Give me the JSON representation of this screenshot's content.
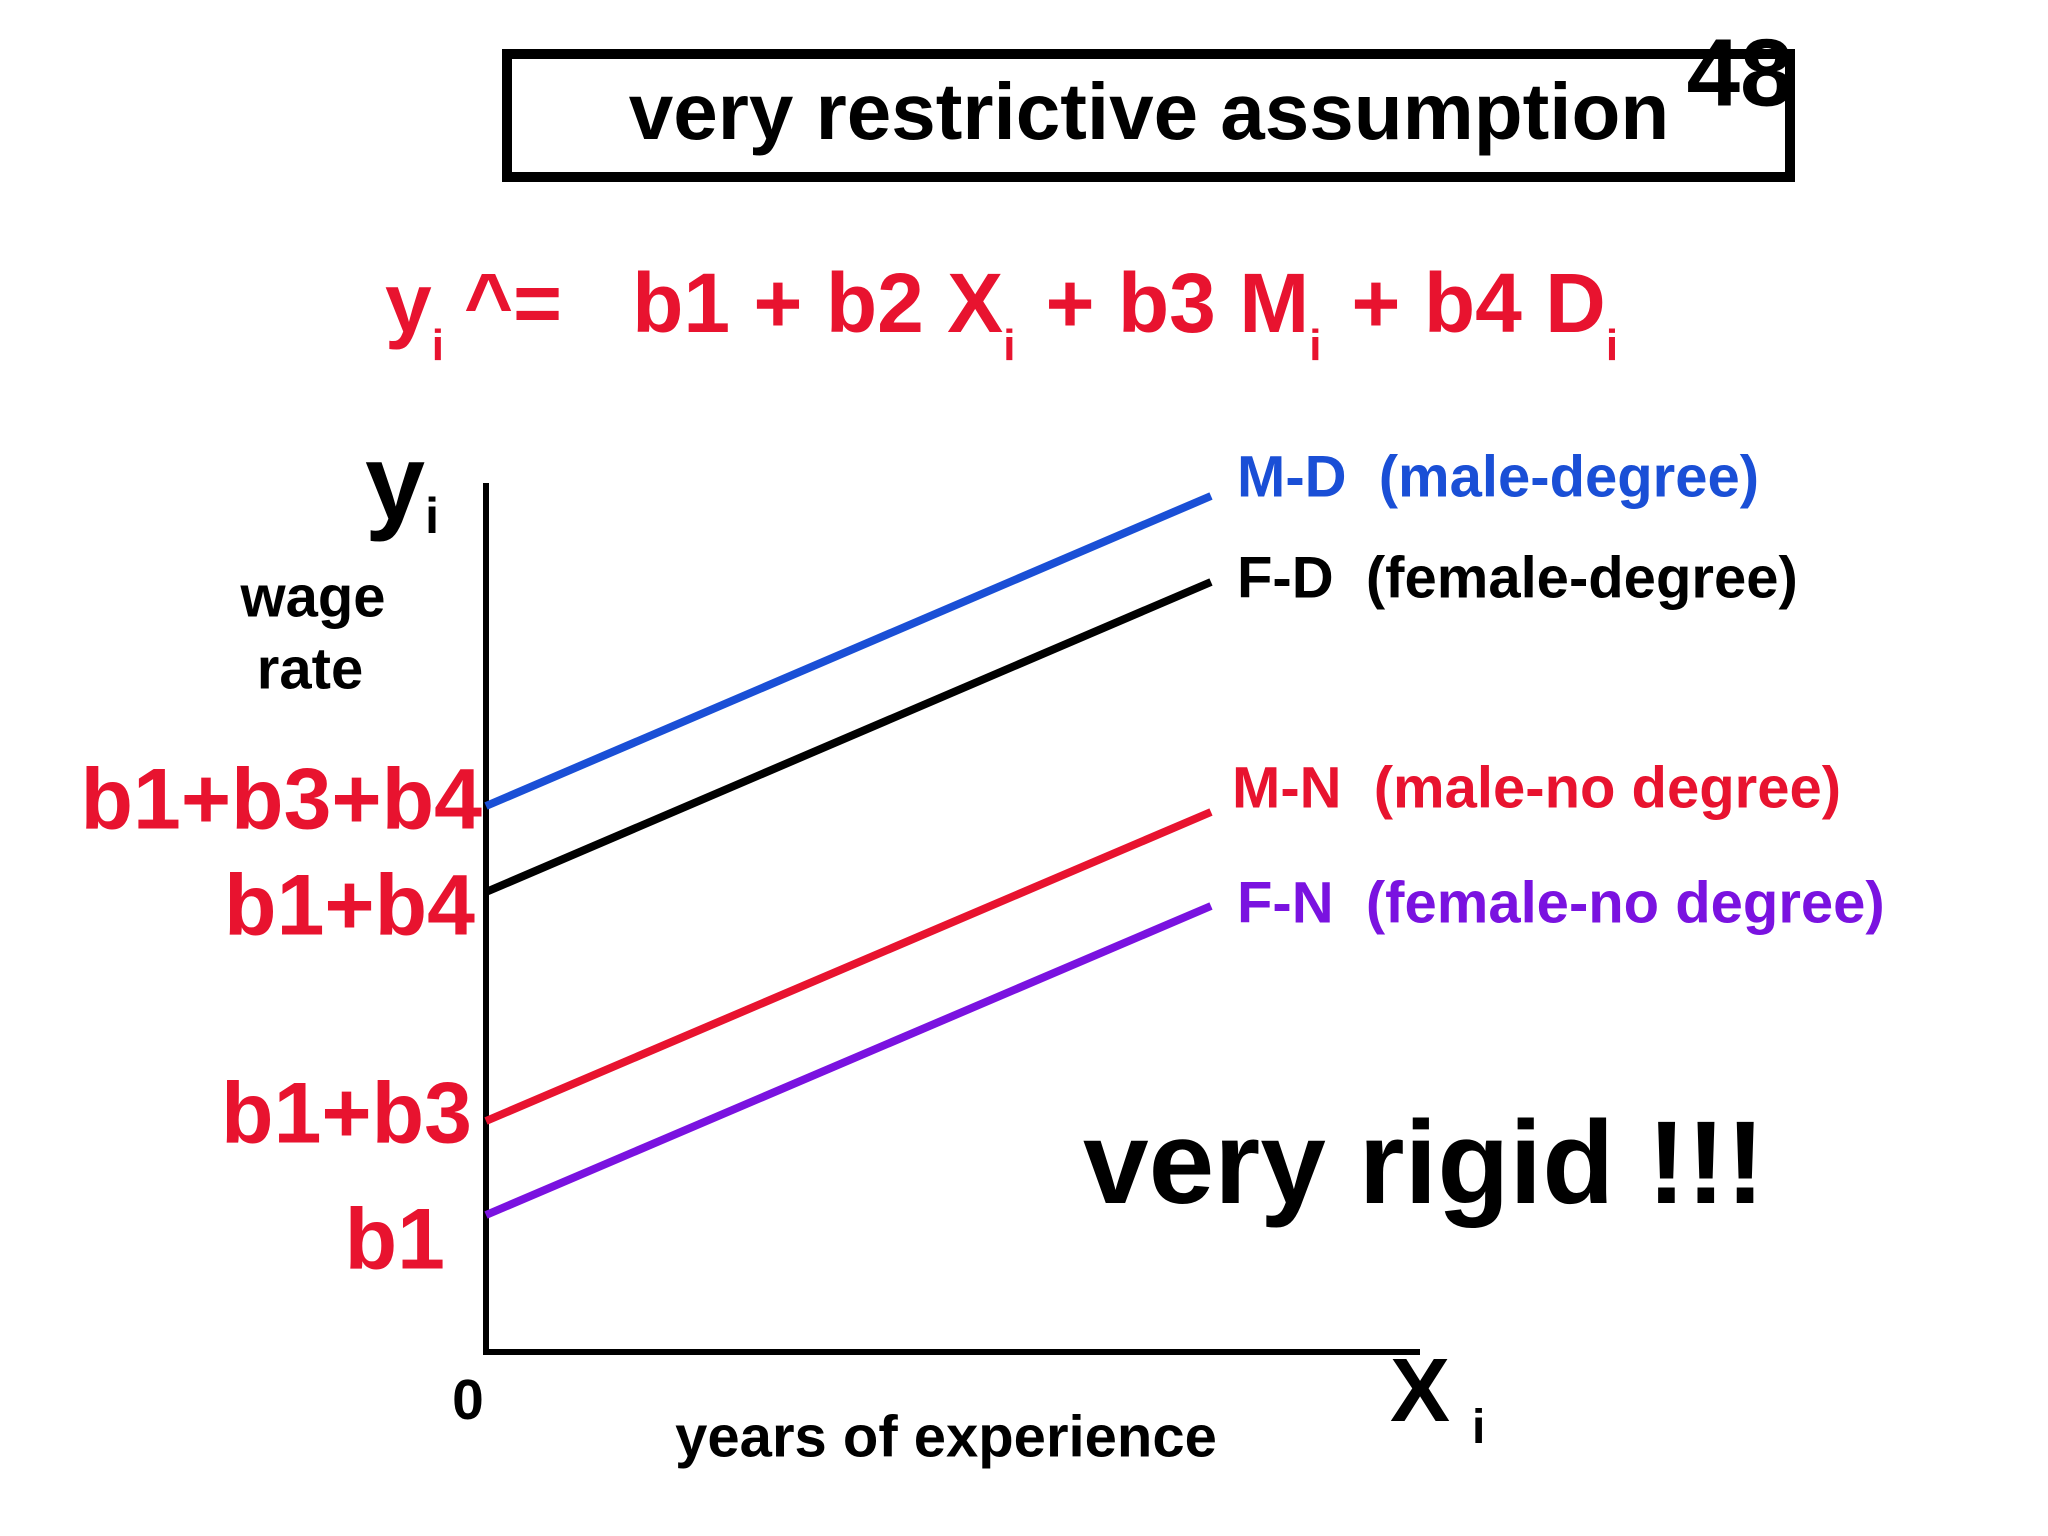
{
  "header": {
    "title": "very restrictive assumption",
    "slide_number": "48"
  },
  "equation": [
    {
      "text": "y",
      "sub": "i"
    },
    {
      "text": "^="
    },
    {
      "text": "b1 + b2 X",
      "sub": "i"
    },
    {
      "text": "+ b3 M",
      "sub": "i"
    },
    {
      "text": "+ b4 D",
      "sub": "i"
    }
  ],
  "diagram": {
    "y_axis": {
      "symbol": "y",
      "sub": "i",
      "label_lines": [
        "wage",
        "rate"
      ]
    },
    "x_axis": {
      "symbol": "X",
      "sub": "i",
      "origin": "0",
      "label": "years of experience"
    },
    "intercepts": [
      "b1+b3+b4",
      "b1+b4",
      "b1+b3",
      "b1"
    ],
    "lines": [
      {
        "label": "M-D  (male-degree)"
      },
      {
        "label": "F-D  (female-degree)"
      },
      {
        "label": "M-N  (male-no degree)"
      },
      {
        "label": "F-N  (female-no degree)"
      }
    ],
    "annotation": "very rigid !!!"
  }
}
